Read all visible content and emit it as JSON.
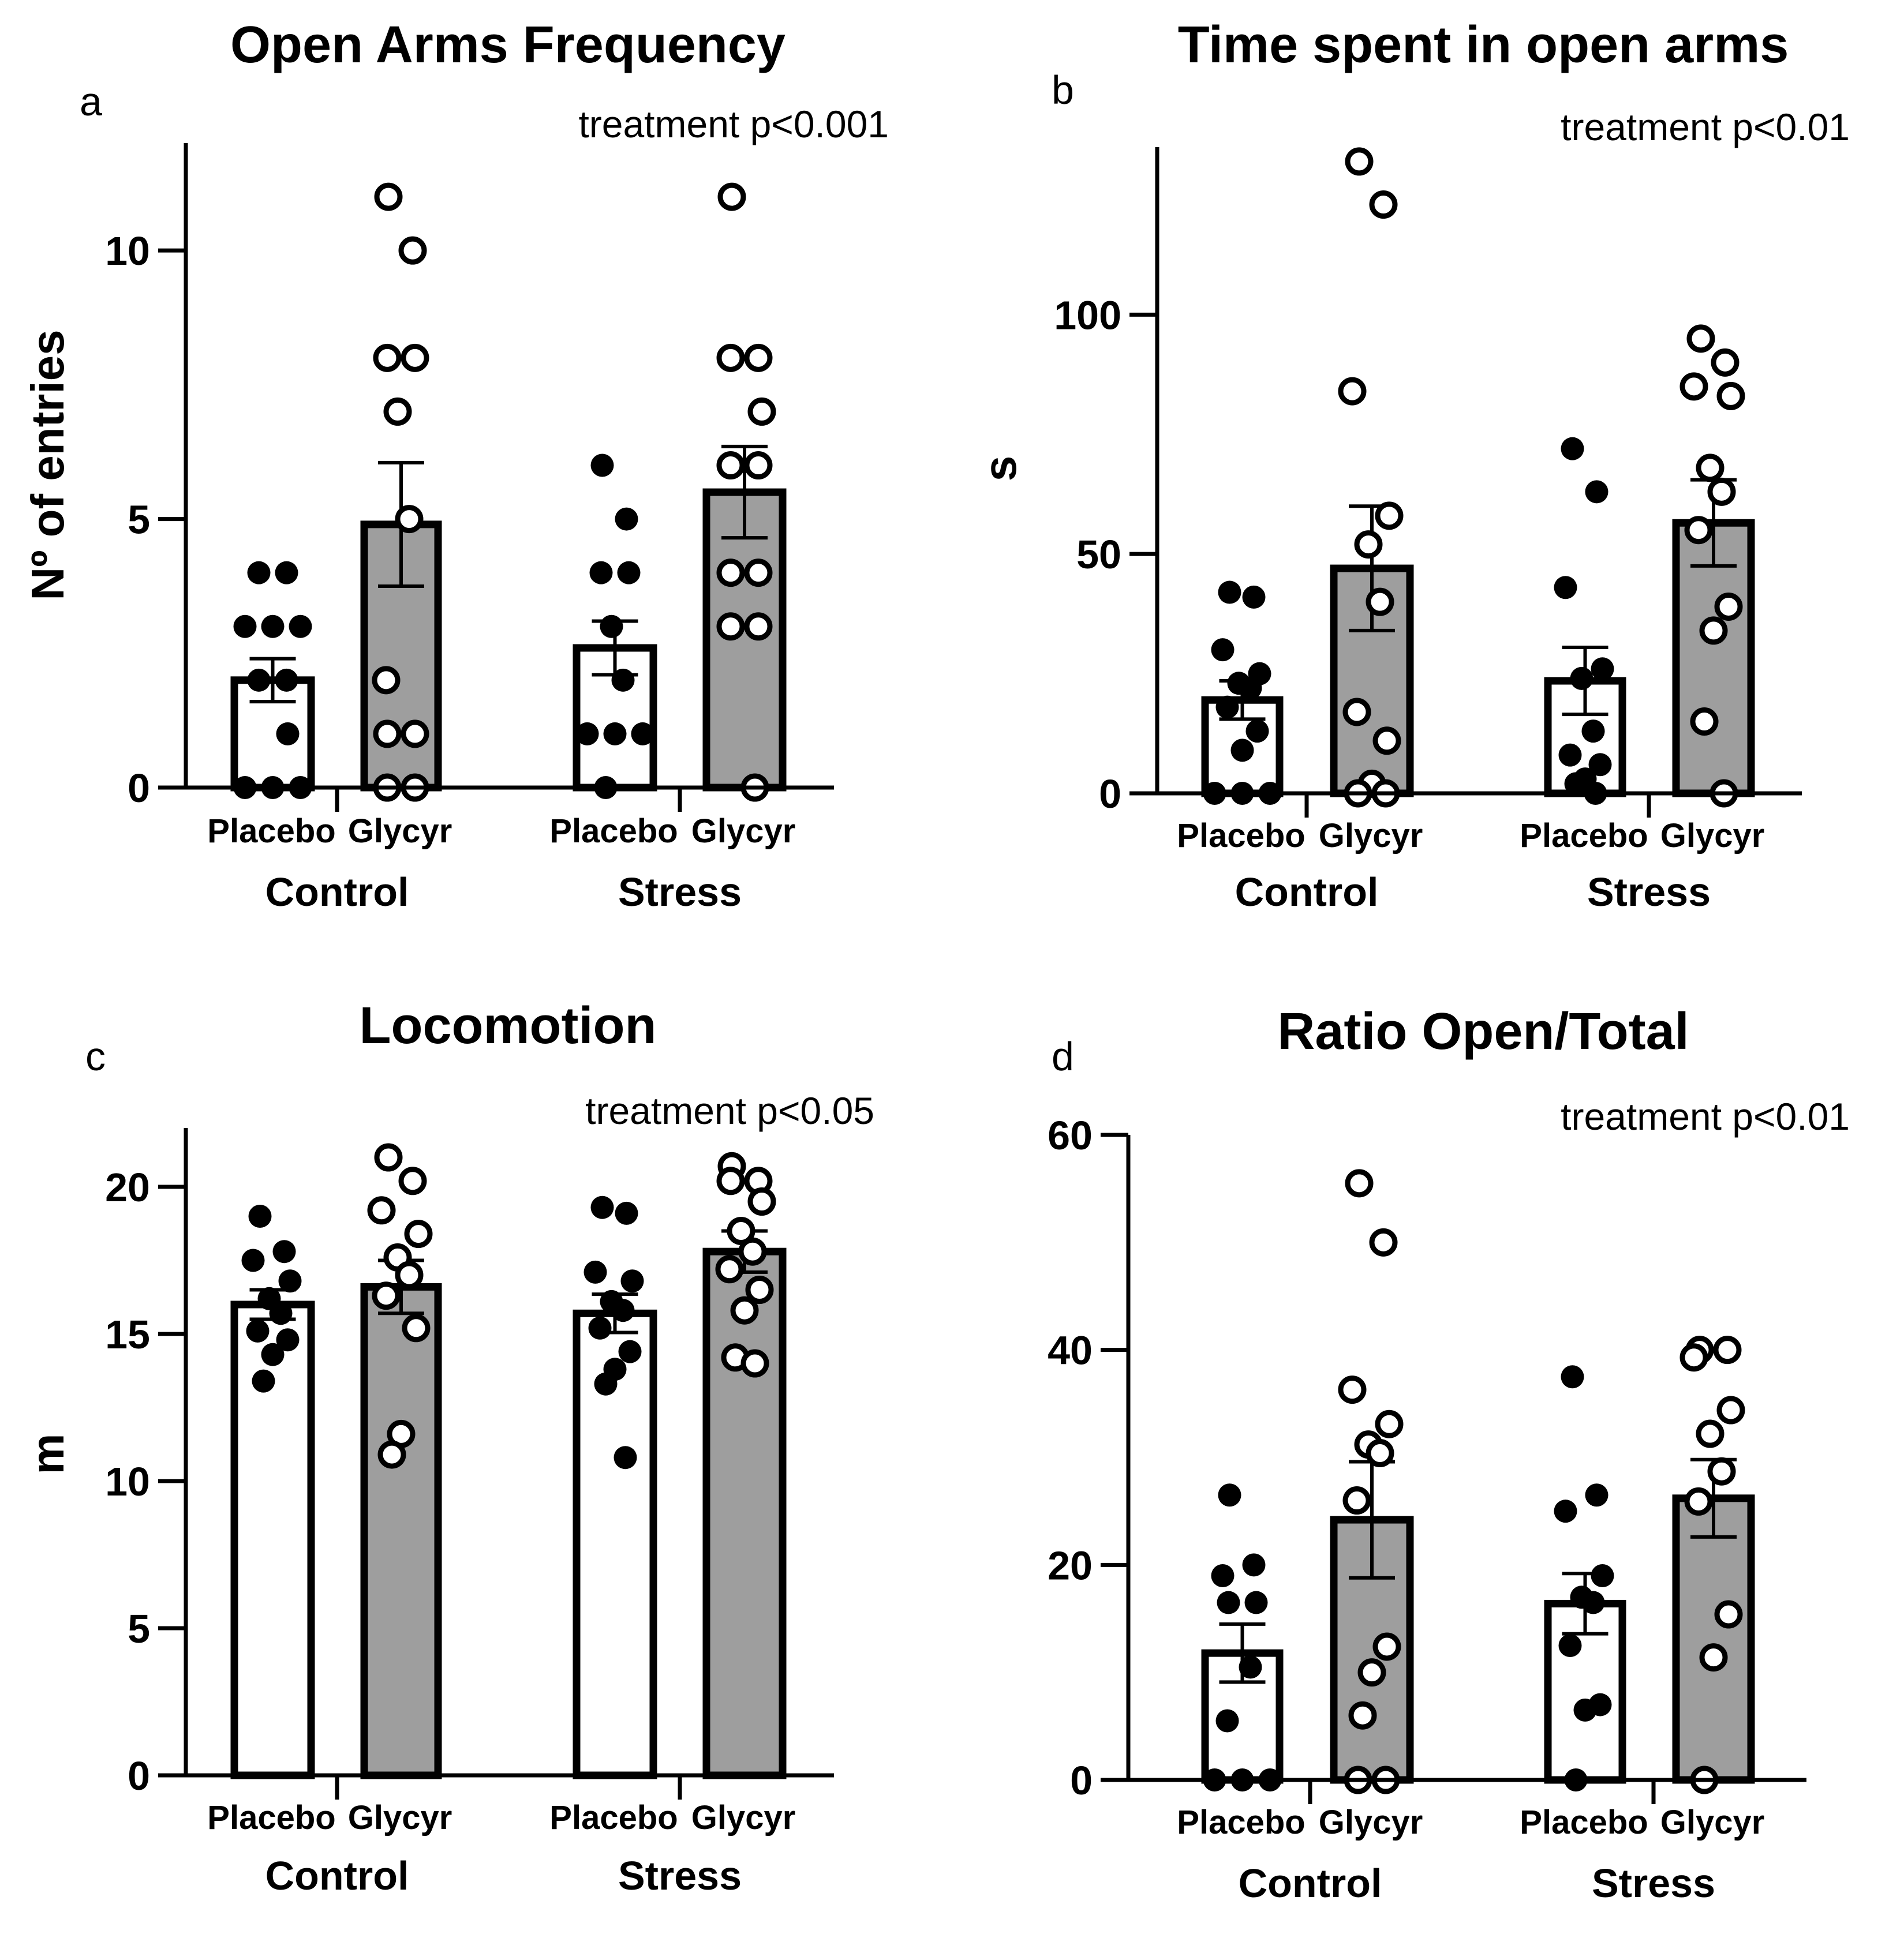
{
  "figure": {
    "background": "#ffffff"
  },
  "style": {
    "placebo_fill": "#ffffff",
    "glycyr_fill": "#9e9e9e",
    "ink": "#000000"
  },
  "chart_data": [
    {
      "type": "bar",
      "panel": "a",
      "title": "Open Arms Frequency",
      "annotation": "treatment p<0.001",
      "ylabel": "Nº of entries",
      "xlabel": "",
      "ylim": [
        0,
        12
      ],
      "yticks": [
        "0",
        "5",
        "10"
      ],
      "ytick_values": [
        0,
        5,
        10
      ],
      "groups": [
        "Control",
        "Stress"
      ],
      "bar_labels": [
        "Placebo",
        "Glycyr",
        "Placebo",
        "Glycyr"
      ],
      "bars": [
        {
          "group": "Control",
          "treatment": "Placebo",
          "mean": 2.0,
          "sem": 0.4,
          "points": [
            4,
            4,
            3,
            3,
            3,
            2,
            2,
            1.0,
            0,
            0,
            0
          ],
          "filled_points": true
        },
        {
          "group": "Control",
          "treatment": "Glycyr",
          "mean": 4.9,
          "sem": 1.15,
          "points": [
            11,
            10,
            8,
            8,
            7,
            5,
            2,
            1,
            1,
            0,
            0
          ],
          "filled_points": false
        },
        {
          "group": "Stress",
          "treatment": "Placebo",
          "mean": 2.6,
          "sem": 0.5,
          "points": [
            6,
            5,
            4,
            4,
            3,
            2,
            1,
            1,
            1,
            0
          ],
          "filled_points": true
        },
        {
          "group": "Stress",
          "treatment": "Glycyr",
          "mean": 5.5,
          "sem": 0.85,
          "points": [
            11,
            8,
            8,
            7,
            6,
            6,
            4,
            4,
            3,
            3,
            0
          ],
          "filled_points": false
        }
      ]
    },
    {
      "type": "bar",
      "panel": "b",
      "title": "Time spent in open arms",
      "annotation": "treatment p<0.01",
      "ylabel": "s",
      "xlabel": "",
      "ylim": [
        0,
        135
      ],
      "yticks": [
        "0",
        "50",
        "100"
      ],
      "ytick_values": [
        0,
        50,
        100
      ],
      "groups": [
        "Control",
        "Stress"
      ],
      "bar_labels": [
        "Placebo",
        "Glycyr",
        "Placebo",
        "Glycyr"
      ],
      "bars": [
        {
          "group": "Control",
          "treatment": "Placebo",
          "mean": 19.5,
          "sem": 4.0,
          "points": [
            42,
            41,
            30,
            25,
            23,
            22,
            18,
            13,
            9,
            0,
            0,
            0
          ],
          "filled_points": true
        },
        {
          "group": "Control",
          "treatment": "Glycyr",
          "mean": 47,
          "sem": 13,
          "points": [
            132,
            123,
            84,
            58,
            52,
            40,
            17,
            11,
            2,
            0,
            0
          ],
          "filled_points": false
        },
        {
          "group": "Stress",
          "treatment": "Placebo",
          "mean": 23.5,
          "sem": 7,
          "points": [
            72,
            63,
            43,
            26,
            24,
            13,
            8,
            6,
            3,
            2,
            0
          ],
          "filled_points": true
        },
        {
          "group": "Stress",
          "treatment": "Glycyr",
          "mean": 56.5,
          "sem": 9,
          "points": [
            95,
            90,
            85,
            83,
            68,
            63,
            55,
            39,
            34,
            15,
            0
          ],
          "filled_points": false
        }
      ]
    },
    {
      "type": "bar",
      "panel": "c",
      "title": "Locomotion",
      "annotation": "treatment p<0.05",
      "ylabel": "m",
      "xlabel": "",
      "ylim": [
        0,
        22
      ],
      "yticks": [
        "0",
        "5",
        "10",
        "15",
        "20"
      ],
      "ytick_values": [
        0,
        5,
        10,
        15,
        20
      ],
      "groups": [
        "Control",
        "Stress"
      ],
      "bar_labels": [
        "Placebo",
        "Glycyr",
        "Placebo",
        "Glycyr"
      ],
      "bars": [
        {
          "group": "Control",
          "treatment": "Placebo",
          "mean": 16.0,
          "sem": 0.5,
          "points": [
            19.0,
            17.8,
            17.5,
            16.8,
            16.2,
            15.7,
            15.1,
            14.8,
            14.3,
            13.4
          ],
          "filled_points": true
        },
        {
          "group": "Control",
          "treatment": "Glycyr",
          "mean": 16.6,
          "sem": 0.9,
          "points": [
            21.0,
            20.2,
            19.2,
            18.4,
            17.6,
            17.0,
            16.3,
            15.2,
            11.6,
            10.9
          ],
          "filled_points": false
        },
        {
          "group": "Stress",
          "treatment": "Placebo",
          "mean": 15.7,
          "sem": 0.65,
          "points": [
            19.3,
            19.1,
            17.1,
            16.8,
            16.1,
            15.8,
            15.2,
            14.4,
            13.8,
            13.3,
            10.8
          ],
          "filled_points": true
        },
        {
          "group": "Stress",
          "treatment": "Glycyr",
          "mean": 17.8,
          "sem": 0.7,
          "points": [
            20.7,
            20.2,
            20.2,
            19.5,
            18.5,
            17.8,
            17.2,
            16.5,
            15.8,
            14.2,
            14.0
          ],
          "filled_points": false
        }
      ]
    },
    {
      "type": "bar",
      "panel": "d",
      "title": "Ratio Open/Total",
      "annotation": "treatment p<0.01",
      "ylabel": "",
      "xlabel": "",
      "ylim": [
        0,
        60
      ],
      "yticks": [
        "0",
        "20",
        "40",
        "60"
      ],
      "ytick_values": [
        0,
        20,
        40,
        60
      ],
      "groups": [
        "Control",
        "Stress"
      ],
      "bar_labels": [
        "Placebo",
        "Glycyr",
        "Placebo",
        "Glycyr"
      ],
      "bars": [
        {
          "group": "Control",
          "treatment": "Placebo",
          "mean": 11.8,
          "sem": 2.7,
          "points": [
            26.5,
            20,
            19,
            16.5,
            16.5,
            10.5,
            5.5,
            0,
            0,
            0
          ],
          "filled_points": true
        },
        {
          "group": "Control",
          "treatment": "Glycyr",
          "mean": 24.2,
          "sem": 5.4,
          "points": [
            55.5,
            50,
            36.3,
            33.1,
            31.2,
            30.4,
            26,
            12.4,
            10,
            6,
            0,
            0
          ],
          "filled_points": false
        },
        {
          "group": "Stress",
          "treatment": "Placebo",
          "mean": 16.4,
          "sem": 2.8,
          "points": [
            37.5,
            26.5,
            25,
            19,
            17,
            16.5,
            12.5,
            7,
            6.5,
            0
          ],
          "filled_points": true
        },
        {
          "group": "Stress",
          "treatment": "Glycyr",
          "mean": 26.2,
          "sem": 3.6,
          "points": [
            40,
            40,
            39.3,
            34.4,
            32.2,
            28.7,
            25.9,
            15.4,
            11.4,
            0
          ],
          "filled_points": false
        }
      ]
    }
  ]
}
